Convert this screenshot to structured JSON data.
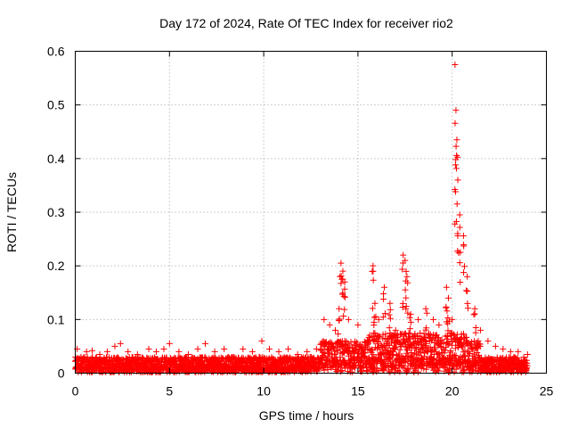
{
  "chart_data": {
    "type": "scatter",
    "title": "Day 172 of 2024, Rate Of TEC Index for receiver rio2",
    "xlabel": "GPS time / hours",
    "ylabel": "ROTI / TECUs",
    "xlim": [
      0,
      25
    ],
    "ylim": [
      0,
      0.6
    ],
    "xticks": [
      0,
      5,
      10,
      15,
      20,
      25
    ],
    "xtick_labels": [
      "0",
      "5",
      "10",
      "15",
      "20",
      "25"
    ],
    "yticks": [
      0,
      0.1,
      0.2,
      0.3,
      0.4,
      0.5,
      0.6
    ],
    "ytick_labels": [
      "0",
      "0.1",
      "0.2",
      "0.3",
      "0.4",
      "0.5",
      "0.6"
    ],
    "grid": true,
    "marker": "+",
    "color": "#ff0000",
    "series": [
      {
        "name": "ROTI",
        "description": "dense background band of ROTI values 0.00-0.05 TECU/min across 0-24 h; highlighted peaks listed",
        "x": [
          0.1,
          0.3,
          0.6,
          0.9,
          1.3,
          1.7,
          2.1,
          2.4,
          2.8,
          3.3,
          3.9,
          4.3,
          4.7,
          5.0,
          5.5,
          6.0,
          6.5,
          6.9,
          7.4,
          7.9,
          8.4,
          8.9,
          9.4,
          9.9,
          10.3,
          10.8,
          11.3,
          11.8,
          12.3,
          12.8,
          13.2,
          13.5,
          13.8,
          14.0,
          14.1,
          14.2,
          14.3,
          14.5,
          15.0,
          15.5,
          15.8,
          15.9,
          16.1,
          16.4,
          16.7,
          17.0,
          17.4,
          17.5,
          17.6,
          17.8,
          18.2,
          18.6,
          19.0,
          19.3,
          19.7,
          19.8,
          20.0,
          20.15,
          20.2,
          20.25,
          20.3,
          20.4,
          20.6,
          20.8,
          21.2,
          21.5,
          21.9,
          22.3,
          22.7,
          23.1,
          23.5,
          23.8,
          24.0
        ],
        "y": [
          0.045,
          0.03,
          0.04,
          0.042,
          0.035,
          0.04,
          0.05,
          0.055,
          0.04,
          0.035,
          0.045,
          0.04,
          0.045,
          0.055,
          0.04,
          0.035,
          0.045,
          0.055,
          0.04,
          0.045,
          0.03,
          0.045,
          0.04,
          0.06,
          0.045,
          0.04,
          0.045,
          0.035,
          0.04,
          0.045,
          0.1,
          0.09,
          0.08,
          0.12,
          0.205,
          0.19,
          0.17,
          0.1,
          0.09,
          0.06,
          0.2,
          0.13,
          0.1,
          0.16,
          0.13,
          0.08,
          0.22,
          0.21,
          0.18,
          0.11,
          0.1,
          0.12,
          0.1,
          0.09,
          0.16,
          0.14,
          0.1,
          0.575,
          0.49,
          0.435,
          0.36,
          0.295,
          0.256,
          0.18,
          0.12,
          0.08,
          0.06,
          0.05,
          0.045,
          0.04,
          0.04,
          0.03,
          0.035
        ]
      }
    ]
  }
}
